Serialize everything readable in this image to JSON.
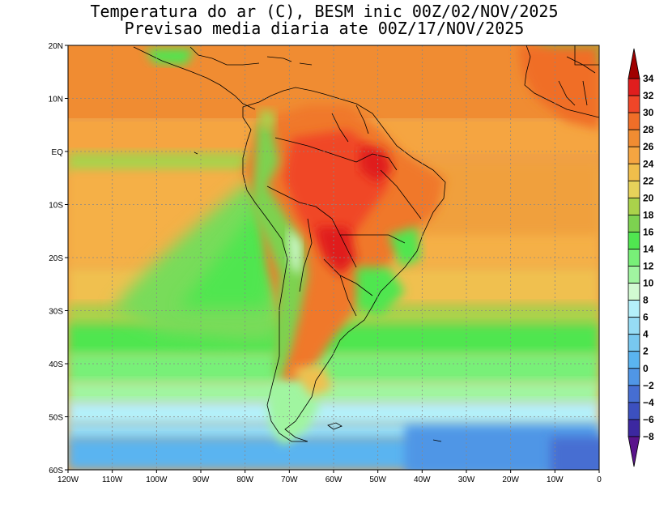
{
  "title": {
    "line1": "Temperatura do ar (C), BESM inic 00Z/02/NOV/2025",
    "line2": "Previsao media diaria ate 00Z/17/NOV/2025"
  },
  "map": {
    "lon_range": [
      -120,
      0
    ],
    "lat_range": [
      -60,
      20
    ],
    "lat_ticks": [
      {
        "value": 20,
        "label": "20N"
      },
      {
        "value": 10,
        "label": "10N"
      },
      {
        "value": 0,
        "label": "EQ"
      },
      {
        "value": -10,
        "label": "10S"
      },
      {
        "value": -20,
        "label": "20S"
      },
      {
        "value": -30,
        "label": "30S"
      },
      {
        "value": -40,
        "label": "40S"
      },
      {
        "value": -50,
        "label": "50S"
      },
      {
        "value": -60,
        "label": "60S"
      }
    ],
    "lon_ticks": [
      {
        "value": -120,
        "label": "120W"
      },
      {
        "value": -110,
        "label": "110W"
      },
      {
        "value": -100,
        "label": "100W"
      },
      {
        "value": -90,
        "label": "90W"
      },
      {
        "value": -80,
        "label": "80W"
      },
      {
        "value": -70,
        "label": "70W"
      },
      {
        "value": -60,
        "label": "60W"
      },
      {
        "value": -50,
        "label": "50W"
      },
      {
        "value": -40,
        "label": "40W"
      },
      {
        "value": -30,
        "label": "30W"
      },
      {
        "value": -20,
        "label": "20W"
      },
      {
        "value": -10,
        "label": "10W"
      },
      {
        "value": 0,
        "label": "0"
      }
    ]
  },
  "colorbar": {
    "levels": [
      34,
      32,
      30,
      28,
      26,
      24,
      22,
      20,
      18,
      16,
      14,
      12,
      10,
      8,
      6,
      4,
      2,
      0,
      -2,
      -4,
      -6,
      -8
    ],
    "labels": [
      "34",
      "32",
      "30",
      "28",
      "26",
      "24",
      "22",
      "20",
      "18",
      "16",
      "14",
      "12",
      "10",
      "8",
      "6",
      "4",
      "2",
      "0",
      "−2",
      "−4",
      "−6",
      "−8"
    ],
    "colors": [
      "#a00000",
      "#e01e1e",
      "#f04628",
      "#f06e28",
      "#f08c32",
      "#f5a541",
      "#f0be4b",
      "#e6d25a",
      "#aad24b",
      "#7dd250",
      "#50e650",
      "#78f078",
      "#a0f5a0",
      "#d2fad2",
      "#b4f0fa",
      "#96dcf5",
      "#78c8f0",
      "#5ab4f0",
      "#5096e6",
      "#466ed2",
      "#3c50bf",
      "#3c28a0",
      "#5a148c"
    ]
  },
  "palette": {
    "land_line": "#000000",
    "grid": "#888888"
  }
}
